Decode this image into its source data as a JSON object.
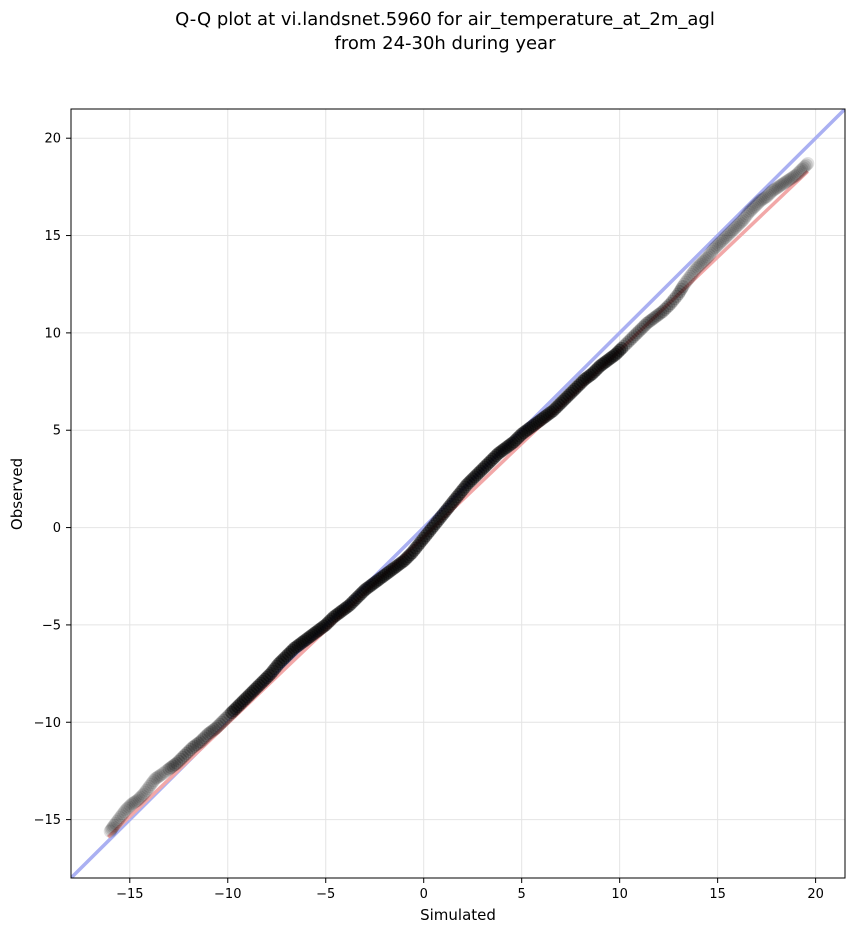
{
  "chart_data": {
    "type": "scatter",
    "title_line1": "Q-Q plot at vi.landsnet.5960 for air_temperature_at_2m_agl",
    "title_line2": "from 24-30h during year",
    "xlabel": "Simulated",
    "ylabel": "Observed",
    "xlim": [
      -18,
      21.5
    ],
    "ylim": [
      -18,
      21.5
    ],
    "xticks": [
      -15,
      -10,
      -5,
      0,
      5,
      10,
      15,
      20
    ],
    "yticks": [
      -15,
      -10,
      -5,
      0,
      5,
      10,
      15,
      20
    ],
    "xtick_labels": [
      "−15",
      "−10",
      "−5",
      "0",
      "5",
      "10",
      "15",
      "20"
    ],
    "ytick_labels": [
      "−15",
      "−10",
      "−5",
      "0",
      "5",
      "10",
      "15",
      "20"
    ],
    "grid": true,
    "identity_line": {
      "color": "#aab0f2",
      "from": [
        -18,
        -18
      ],
      "to": [
        21.5,
        21.5
      ]
    },
    "fit_line": {
      "color": "#f2a8a8",
      "from": [
        -16.1,
        -15.9
      ],
      "to": [
        19.6,
        18.3
      ]
    },
    "point_color": "#000000",
    "quantiles": [
      [
        -16.0,
        -15.6
      ],
      [
        -15.8,
        -15.3
      ],
      [
        -15.5,
        -14.9
      ],
      [
        -15.2,
        -14.5
      ],
      [
        -14.9,
        -14.2
      ],
      [
        -14.6,
        -14.0
      ],
      [
        -14.3,
        -13.7
      ],
      [
        -14.0,
        -13.3
      ],
      [
        -13.7,
        -12.9
      ],
      [
        -13.4,
        -12.7
      ],
      [
        -13.0,
        -12.4
      ],
      [
        -12.6,
        -12.1
      ],
      [
        -12.2,
        -11.7
      ],
      [
        -11.8,
        -11.3
      ],
      [
        -11.4,
        -11.0
      ],
      [
        -11.0,
        -10.6
      ],
      [
        -10.6,
        -10.3
      ],
      [
        -10.2,
        -9.9
      ],
      [
        -9.8,
        -9.5
      ],
      [
        -9.4,
        -9.1
      ],
      [
        -9.0,
        -8.7
      ],
      [
        -8.6,
        -8.3
      ],
      [
        -8.2,
        -7.9
      ],
      [
        -7.8,
        -7.5
      ],
      [
        -7.4,
        -7.0
      ],
      [
        -7.0,
        -6.6
      ],
      [
        -6.6,
        -6.2
      ],
      [
        -6.2,
        -5.9
      ],
      [
        -5.8,
        -5.6
      ],
      [
        -5.4,
        -5.3
      ],
      [
        -5.0,
        -5.0
      ],
      [
        -4.6,
        -4.6
      ],
      [
        -4.2,
        -4.3
      ],
      [
        -3.8,
        -4.0
      ],
      [
        -3.4,
        -3.6
      ],
      [
        -3.0,
        -3.2
      ],
      [
        -2.6,
        -2.9
      ],
      [
        -2.2,
        -2.6
      ],
      [
        -1.8,
        -2.3
      ],
      [
        -1.4,
        -2.0
      ],
      [
        -1.0,
        -1.7
      ],
      [
        -0.6,
        -1.3
      ],
      [
        -0.2,
        -0.8
      ],
      [
        0.2,
        -0.3
      ],
      [
        0.6,
        0.2
      ],
      [
        1.0,
        0.7
      ],
      [
        1.4,
        1.2
      ],
      [
        1.8,
        1.7
      ],
      [
        2.2,
        2.2
      ],
      [
        2.6,
        2.6
      ],
      [
        3.0,
        3.0
      ],
      [
        3.4,
        3.4
      ],
      [
        3.8,
        3.8
      ],
      [
        4.2,
        4.1
      ],
      [
        4.6,
        4.4
      ],
      [
        5.0,
        4.8
      ],
      [
        5.4,
        5.1
      ],
      [
        5.8,
        5.4
      ],
      [
        6.2,
        5.7
      ],
      [
        6.6,
        6.0
      ],
      [
        7.0,
        6.4
      ],
      [
        7.4,
        6.8
      ],
      [
        7.8,
        7.2
      ],
      [
        8.2,
        7.6
      ],
      [
        8.6,
        7.9
      ],
      [
        9.0,
        8.3
      ],
      [
        9.4,
        8.6
      ],
      [
        9.8,
        8.9
      ],
      [
        10.2,
        9.3
      ],
      [
        10.6,
        9.7
      ],
      [
        11.0,
        10.1
      ],
      [
        11.4,
        10.5
      ],
      [
        11.8,
        10.8
      ],
      [
        12.2,
        11.1
      ],
      [
        12.6,
        11.5
      ],
      [
        13.0,
        12.0
      ],
      [
        13.3,
        12.5
      ],
      [
        13.6,
        12.9
      ],
      [
        13.9,
        13.3
      ],
      [
        14.2,
        13.6
      ],
      [
        14.5,
        13.9
      ],
      [
        14.8,
        14.3
      ],
      [
        15.1,
        14.6
      ],
      [
        15.4,
        14.9
      ],
      [
        15.7,
        15.2
      ],
      [
        16.0,
        15.5
      ],
      [
        16.3,
        15.8
      ],
      [
        16.6,
        16.2
      ],
      [
        16.9,
        16.5
      ],
      [
        17.2,
        16.8
      ],
      [
        17.5,
        17.0
      ],
      [
        17.8,
        17.3
      ],
      [
        18.1,
        17.5
      ],
      [
        18.4,
        17.7
      ],
      [
        18.7,
        17.9
      ],
      [
        19.0,
        18.1
      ],
      [
        19.3,
        18.4
      ],
      [
        19.6,
        18.7
      ]
    ]
  }
}
